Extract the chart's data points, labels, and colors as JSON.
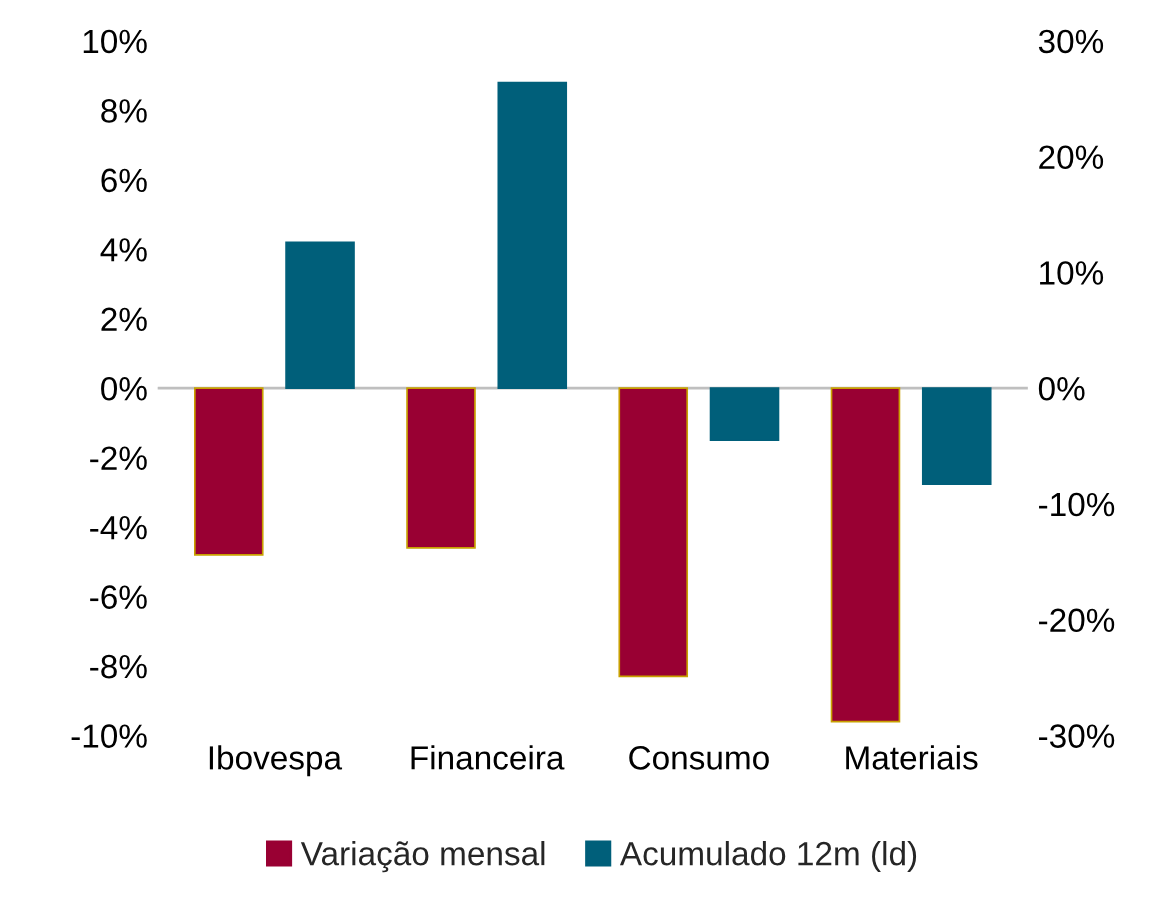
{
  "chart_data": {
    "type": "bar",
    "categories": [
      "Ibovespa",
      "Financeira",
      "Consumo",
      "Materiais"
    ],
    "series": [
      {
        "name": "Variação mensal",
        "color": "#990033",
        "values": [
          -4.8,
          -4.6,
          -8.3,
          -9.6
        ]
      },
      {
        "name": "Acumulado 12m (ld)",
        "color": "#005f7a",
        "axis": "y2",
        "values": [
          12.6,
          26.4,
          -4.5,
          -8.3
        ]
      }
    ],
    "ylim": [
      -10,
      10
    ],
    "yticks": [
      {
        "value": -10,
        "label": "-10%"
      },
      {
        "value": -8,
        "label": "-8%"
      },
      {
        "value": -6,
        "label": "-6%"
      },
      {
        "value": -4,
        "label": "-4%"
      },
      {
        "value": -2,
        "label": "-2%"
      },
      {
        "value": 0,
        "label": "0%"
      },
      {
        "value": 2,
        "label": "2%"
      },
      {
        "value": 4,
        "label": "4%"
      },
      {
        "value": 6,
        "label": "6%"
      },
      {
        "value": 8,
        "label": "8%"
      },
      {
        "value": 10,
        "label": "10%"
      }
    ],
    "y2lim": [
      -30,
      30
    ],
    "y2ticks": [
      {
        "value": -30,
        "label": "-30%"
      },
      {
        "value": -20,
        "label": "-20%"
      },
      {
        "value": -10,
        "label": "-10%"
      },
      {
        "value": 0,
        "label": "0%"
      },
      {
        "value": 10,
        "label": "10%"
      },
      {
        "value": 20,
        "label": "20%"
      },
      {
        "value": 30,
        "label": "30%"
      }
    ],
    "legend": "bottom"
  }
}
